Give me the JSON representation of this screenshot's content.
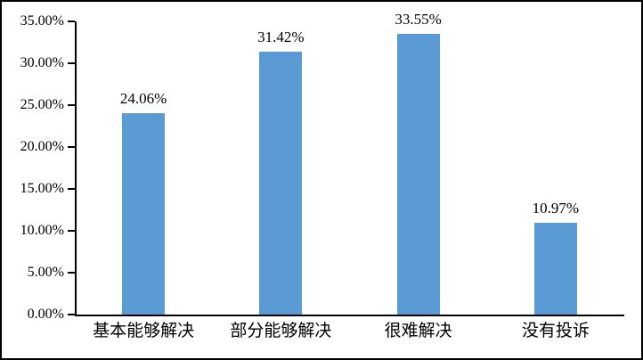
{
  "colors": {
    "bar_fill": "#5B9BD5",
    "axis": "#000000",
    "frame_border": "#000000",
    "text": "#000000",
    "background": "#ffffff"
  },
  "chart_data": {
    "type": "bar",
    "title": "",
    "xlabel": "",
    "ylabel": "",
    "categories": [
      "基本能够解决",
      "部分能够解决",
      "很难解决",
      "没有投诉"
    ],
    "values": [
      24.06,
      31.42,
      33.55,
      10.97
    ],
    "value_labels": [
      "24.06%",
      "31.42%",
      "33.55%",
      "10.97%"
    ],
    "ylim": [
      0,
      35
    ],
    "ytick_step": 5,
    "ytick_values": [
      0,
      5,
      10,
      15,
      20,
      25,
      30,
      35
    ],
    "ytick_labels": [
      "0.00%",
      "5.00%",
      "10.00%",
      "15.00%",
      "20.00%",
      "25.00%",
      "30.00%",
      "35.00%"
    ],
    "grid": false,
    "legend": "none",
    "bar_color": "#5B9BD5"
  }
}
